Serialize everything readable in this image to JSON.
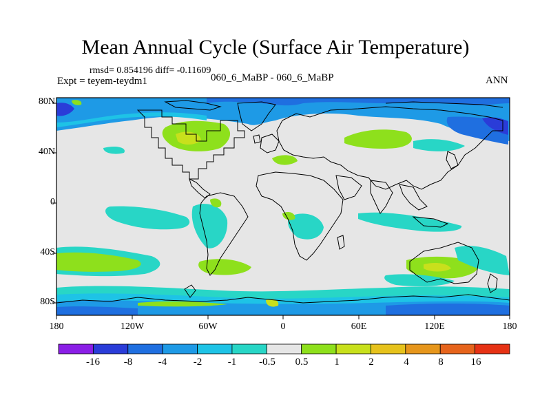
{
  "title": "Mean Annual Cycle (Surface Air Temperature)",
  "stats_line": "rmsd= 0.854196 diff= -0.11609",
  "expt_line": "Expt = teyem-teydm1",
  "case_line": "060_6_MaBP - 060_6_MaBP",
  "season": "ANN",
  "y_ticks": [
    "80N",
    "40N",
    "0",
    "40S",
    "80S"
  ],
  "x_ticks": [
    "180",
    "120W",
    "60W",
    "0",
    "60E",
    "120E",
    "180"
  ],
  "colorbar": {
    "labels": [
      "-16",
      "-8",
      "-4",
      "-2",
      "-1",
      "-0.5",
      "0.5",
      "1",
      "2",
      "4",
      "8",
      "16"
    ],
    "colors": [
      "#8a1ee6",
      "#2a3cd8",
      "#1f6fe0",
      "#1e9ae6",
      "#1ec3e6",
      "#28d6c6",
      "#e6e6e6",
      "#8ee01c",
      "#c8e01c",
      "#e6c21c",
      "#e6961c",
      "#e6641c",
      "#e63214"
    ]
  },
  "colors": {
    "land_outline": "#000000",
    "neutral": "#e6e6e6"
  }
}
